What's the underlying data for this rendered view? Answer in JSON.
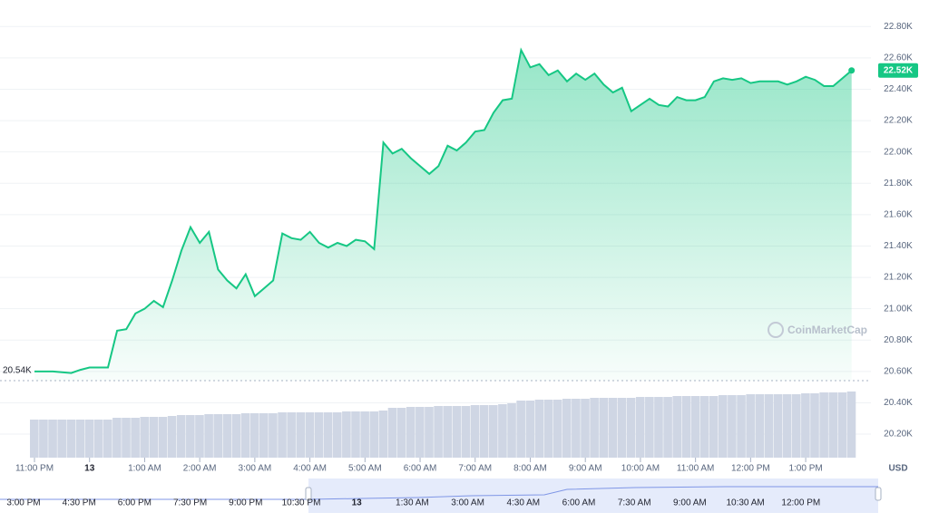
{
  "chart_data": {
    "type": "line",
    "categories": [
      "11:00 PM",
      null,
      null,
      null,
      null,
      null,
      "13",
      null,
      null,
      null,
      null,
      null,
      "1:00 AM",
      null,
      null,
      null,
      null,
      null,
      "2:00 AM",
      null,
      null,
      null,
      null,
      null,
      "3:00 AM",
      null,
      null,
      null,
      null,
      null,
      "4:00 AM",
      null,
      null,
      null,
      null,
      null,
      "5:00 AM",
      null,
      null,
      null,
      null,
      null,
      "6:00 AM",
      null,
      null,
      null,
      null,
      null,
      "7:00 AM",
      null,
      null,
      null,
      null,
      null,
      "8:00 AM",
      null,
      null,
      null,
      null,
      null,
      "9:00 AM",
      null,
      null,
      null,
      null,
      null,
      "10:00 AM",
      null,
      null,
      null,
      null,
      null,
      "11:00 AM",
      null,
      null,
      null,
      null,
      null,
      "12:00 PM",
      null,
      null,
      null,
      null,
      null,
      "1:00 PM",
      null,
      null,
      null,
      null,
      null
    ],
    "series": [
      {
        "color": "#16c784",
        "values": [
          20600,
          20600,
          20600,
          20595,
          20590,
          20610,
          20625,
          20625,
          20625,
          20860,
          20870,
          20970,
          21000,
          21050,
          21010,
          21180,
          21370,
          21520,
          21420,
          21490,
          21250,
          21180,
          21130,
          21220,
          21080,
          21130,
          21180,
          21480,
          21450,
          21440,
          21490,
          21420,
          21390,
          21420,
          21400,
          21440,
          21430,
          21380,
          22060,
          21990,
          22020,
          21960,
          21910,
          21860,
          21910,
          22040,
          22010,
          22060,
          22130,
          22140,
          22250,
          22330,
          22340,
          22650,
          22540,
          22560,
          22490,
          22520,
          22450,
          22500,
          22460,
          22500,
          22430,
          22380,
          22410,
          22260,
          22300,
          22340,
          22300,
          22290,
          22350,
          22330,
          22330,
          22350,
          22450,
          22470,
          22460,
          22470,
          22440,
          22450,
          22450,
          22450,
          22430,
          22450,
          22480,
          22460,
          22420,
          22420,
          22470,
          22520
        ]
      }
    ],
    "volume": {
      "color": "#cfd6e4",
      "ylim": [
        0,
        100
      ],
      "values": [
        42,
        42,
        42,
        42,
        42,
        42,
        42,
        42,
        42,
        44,
        44,
        44,
        45,
        45,
        45,
        46,
        47,
        47,
        47,
        48,
        48,
        48,
        48,
        49,
        49,
        49,
        49,
        50,
        50,
        50,
        50,
        50,
        50,
        50,
        51,
        51,
        51,
        51,
        52,
        55,
        55,
        56,
        56,
        56,
        57,
        57,
        57,
        57,
        58,
        58,
        58,
        59,
        60,
        63,
        63,
        64,
        64,
        64,
        65,
        65,
        65,
        66,
        66,
        66,
        66,
        66,
        67,
        67,
        67,
        67,
        68,
        68,
        68,
        68,
        68,
        69,
        69,
        69,
        70,
        70,
        70,
        70,
        70,
        70,
        71,
        71,
        72,
        72,
        72,
        73
      ]
    },
    "ylim": [
      20050,
      22900
    ],
    "yticks": [
      {
        "value": 22800,
        "label": "22.80K"
      },
      {
        "value": 22600,
        "label": "22.60K"
      },
      {
        "value": 22400,
        "label": "22.40K"
      },
      {
        "value": 22200,
        "label": "22.20K"
      },
      {
        "value": 22000,
        "label": "22.00K"
      },
      {
        "value": 21800,
        "label": "21.80K"
      },
      {
        "value": 21600,
        "label": "21.60K"
      },
      {
        "value": 21400,
        "label": "21.40K"
      },
      {
        "value": 21200,
        "label": "21.20K"
      },
      {
        "value": 21000,
        "label": "21.00K"
      },
      {
        "value": 20800,
        "label": "20.80K"
      },
      {
        "value": 20600,
        "label": "20.60K"
      },
      {
        "value": 20400,
        "label": "20.40K"
      },
      {
        "value": 20200,
        "label": "20.20K"
      }
    ],
    "grid": true,
    "start_label": "20.54K",
    "last_label": "22.52K",
    "currency": "USD",
    "watermark": "CoinMarketCap",
    "navigator": {
      "labels": [
        "3:00 PM",
        "4:30 PM",
        "6:00 PM",
        "7:30 PM",
        "9:00 PM",
        "10:30 PM",
        "13",
        "1:30 AM",
        "3:00 AM",
        "4:30 AM",
        "6:00 AM",
        "7:30 AM",
        "9:00 AM",
        "10:30 AM",
        "12:00 PM"
      ]
    }
  }
}
